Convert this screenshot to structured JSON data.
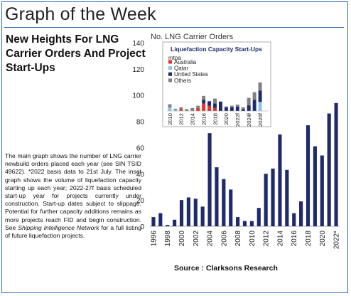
{
  "header": {
    "title": "Graph of the Week"
  },
  "article": {
    "subtitle": "New Heights For LNG Carrier Orders And Project Start-Ups",
    "caption_part1": "The main graph shows the number of LNG carrier newbuild orders placed each year (see SIN TSID 49622). *2022 basis data to 21st July. The inset graph shows the volume of liquefaction capacity starting up each year; 2022-27f basis scheduled start-up year for projects currently under construction. Start-up dates subject to slippage. Potential for further capacity additions remains as more projects reach FID and begin construction. See ",
    "caption_italic": "Shipping Intelligence Network",
    "caption_part2": " for a full listing of future liquefaction projects.",
    "source": "Source : Clarksons Research"
  },
  "chart_data": [
    {
      "type": "bar",
      "title": "No. LNG Carrier Orders",
      "categories": [
        "1996",
        "1997",
        "1998",
        "1999",
        "2000",
        "2001",
        "2002",
        "2003",
        "2004",
        "2005",
        "2006",
        "2007",
        "2008",
        "2009",
        "2010",
        "2011",
        "2012",
        "2013",
        "2014",
        "2015",
        "2016",
        "2017",
        "2018",
        "2019",
        "2020",
        "2021",
        "2022*"
      ],
      "x_tick_labels": [
        "1996",
        "1998",
        "2000",
        "2002",
        "2004",
        "2006",
        "2008",
        "2010",
        "2012",
        "2014",
        "2016",
        "2018",
        "2020",
        "2022*"
      ],
      "values": [
        7,
        10,
        1,
        5,
        20,
        22,
        21,
        15,
        71,
        45,
        36,
        28,
        7,
        4,
        4,
        14,
        40,
        44,
        70,
        43,
        10,
        19,
        77,
        61,
        54,
        86,
        94
      ],
      "ylim": [
        0,
        140
      ],
      "yticks": [
        0,
        20,
        40,
        60,
        80,
        100,
        120,
        140
      ],
      "colors": {
        "bar": "#1f2a6e"
      }
    },
    {
      "type": "bar",
      "stacked": true,
      "title": "Liquefaction Capacity Start-Ups",
      "ylabel": "mtpa",
      "categories": [
        "2010",
        "2011",
        "2012",
        "2013",
        "2014",
        "2015",
        "2016",
        "2017",
        "2018",
        "2019",
        "2020",
        "2021",
        "2022f",
        "2023f",
        "2024f",
        "2025f",
        "2026f",
        "2027f"
      ],
      "x_tick_labels": [
        "2010",
        "2012",
        "2014",
        "2016",
        "2018",
        "2020",
        "2022f",
        "2024f",
        "2026f"
      ],
      "series": [
        {
          "name": "Australia",
          "color": "#e8302a",
          "values": [
            0,
            0,
            4,
            0,
            0,
            8,
            20,
            14,
            8,
            0,
            0,
            0,
            0,
            0,
            0,
            0,
            0,
            0
          ]
        },
        {
          "name": "Qatar",
          "color": "#8ec6ea",
          "values": [
            9,
            3,
            0,
            0,
            0,
            0,
            0,
            0,
            0,
            0,
            0,
            0,
            0,
            0,
            0,
            0,
            24,
            0
          ]
        },
        {
          "name": "United States",
          "color": "#1f2a6e",
          "values": [
            0,
            0,
            0,
            0,
            0,
            0,
            10,
            12,
            12,
            25,
            10,
            10,
            12,
            5,
            15,
            30,
            30,
            0
          ]
        },
        {
          "name": "Others",
          "color": "#7f8083",
          "values": [
            9,
            3,
            6,
            5,
            8,
            6,
            10,
            0,
            13,
            0,
            2,
            4,
            5,
            5,
            20,
            20,
            22,
            0
          ]
        }
      ],
      "ylim": [
        0,
        140
      ]
    }
  ]
}
